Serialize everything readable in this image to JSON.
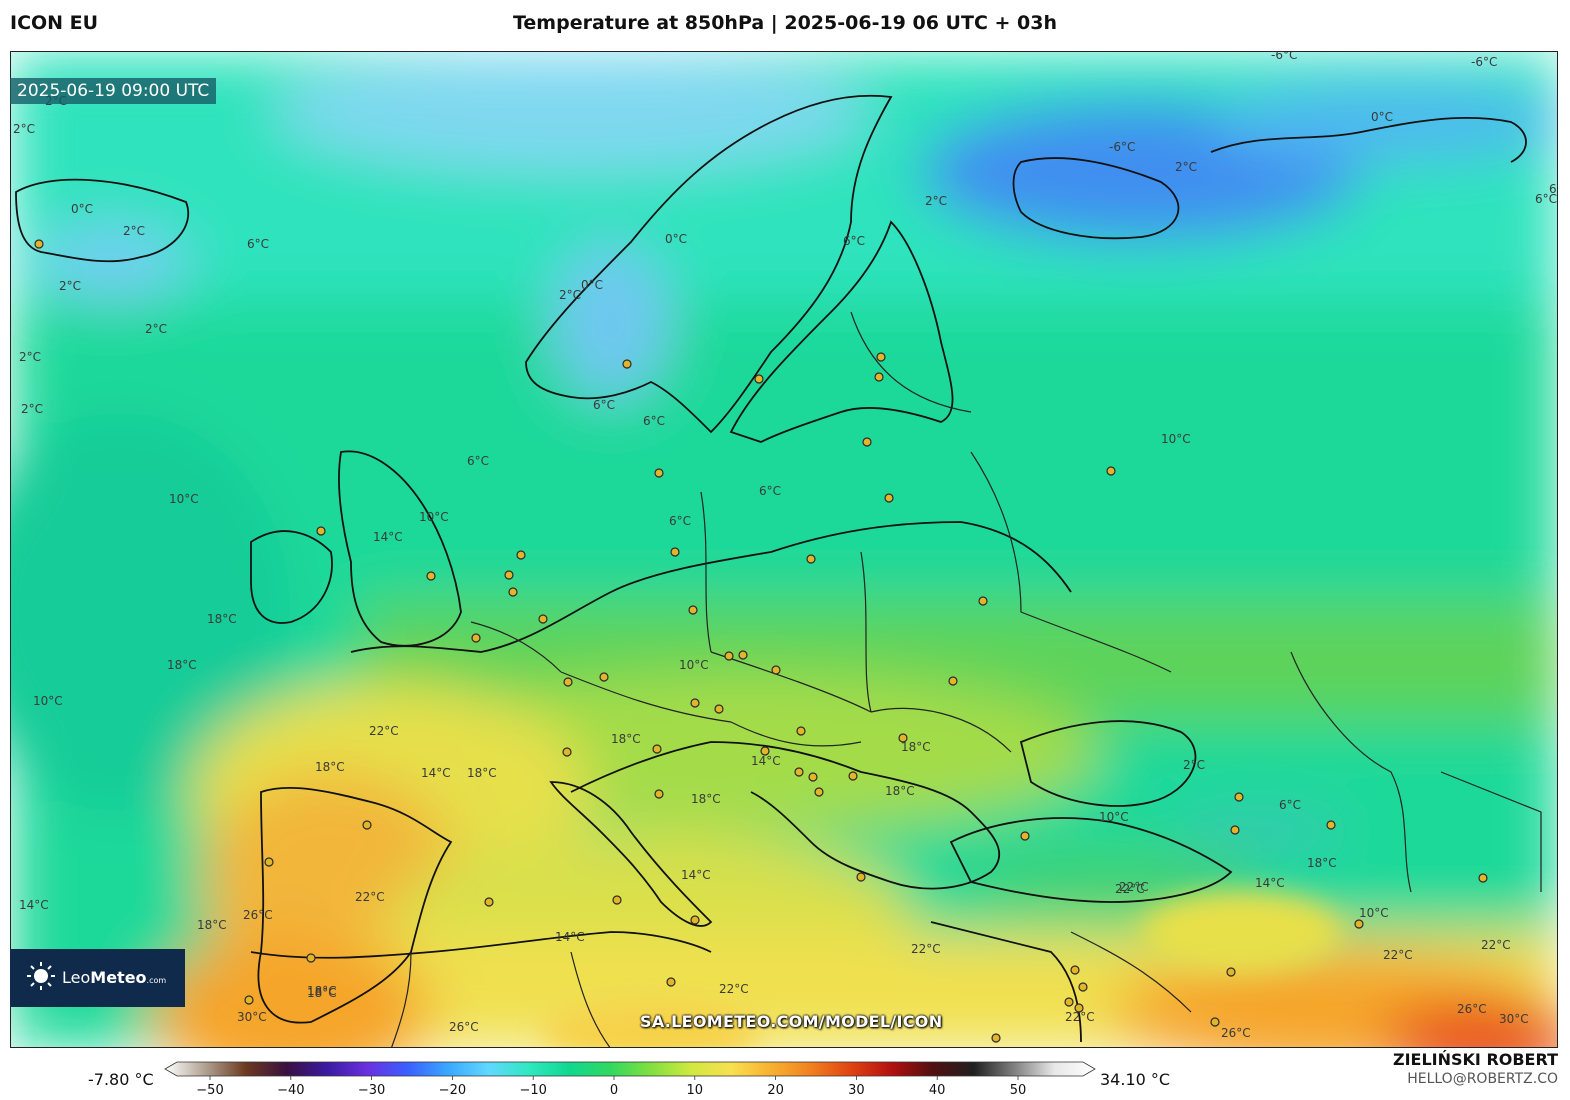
{
  "header": {
    "model": "ICON EU",
    "title": "Temperature at 850hPa | 2025-06-19 06 UTC + 03h"
  },
  "map": {
    "valid_time": "2025-06-19 09:00 UTC",
    "watermark": "SA.LEOMETEO.COM/MODEL/ICON",
    "contour_labels": [
      "2°C",
      "2°C",
      "0°C",
      "2°C",
      "6°C",
      "2°C",
      "2°C",
      "2°C",
      "2°C",
      "0°C",
      "2°C",
      "6°C",
      "0°C",
      "-6°C",
      "-6°C",
      "0°C",
      "2°C",
      "-6°C",
      "2°C",
      "6°C",
      "6°C",
      "6°C",
      "6°C",
      "10°C",
      "10°C",
      "14°C",
      "10°C",
      "6°C",
      "6°C",
      "18°C",
      "18°C",
      "10°C",
      "22°C",
      "18°C",
      "14°C",
      "18°C",
      "10°C",
      "18°C",
      "14°C",
      "18°C",
      "18°C",
      "18°C",
      "10°C",
      "2°C",
      "6°C",
      "22°C",
      "14°C",
      "22°C",
      "14°C",
      "26°C",
      "18°C",
      "18°C",
      "30°C",
      "26°C",
      "22°C",
      "22°C",
      "10°C",
      "14°C",
      "22°C",
      "22°C",
      "26°C",
      "30°C",
      "26°C",
      "18°C",
      "22°C",
      "14°C",
      "22°C",
      "18°C",
      "6°C"
    ],
    "colors": {
      "cold": "#2f7fe8",
      "cool": "#3fe0b8",
      "mild": "#16d18a",
      "warm": "#9cd84a",
      "hot": "#f0e050",
      "very_hot": "#f5a52a",
      "extreme": "#e8501a"
    }
  },
  "logo": {
    "brand_light": "Leo",
    "brand_bold": "Meteo",
    "domain": ".com"
  },
  "colorbar": {
    "min_label": "-7.80 °C",
    "max_label": "34.10 °C",
    "ticks": [
      "−50",
      "−40",
      "−30",
      "−20",
      "−10",
      "0",
      "10",
      "20",
      "30",
      "40",
      "50"
    ],
    "stops": [
      "#ffffff",
      "#b0a090",
      "#6b3a20",
      "#3a1040",
      "#3a1aa0",
      "#6a30e0",
      "#3a60ff",
      "#3aa8ff",
      "#60d8ff",
      "#30e8c0",
      "#10d890",
      "#30d860",
      "#80e040",
      "#d0e840",
      "#f8e050",
      "#f8b030",
      "#f08020",
      "#e04010",
      "#b01010",
      "#501010",
      "#202020",
      "#808080",
      "#e8e8e8",
      "#ffffff"
    ]
  },
  "footer": {
    "author": "ZIELIŃSKI ROBERT",
    "contact": "HELLO@ROBERTZ.CO"
  }
}
